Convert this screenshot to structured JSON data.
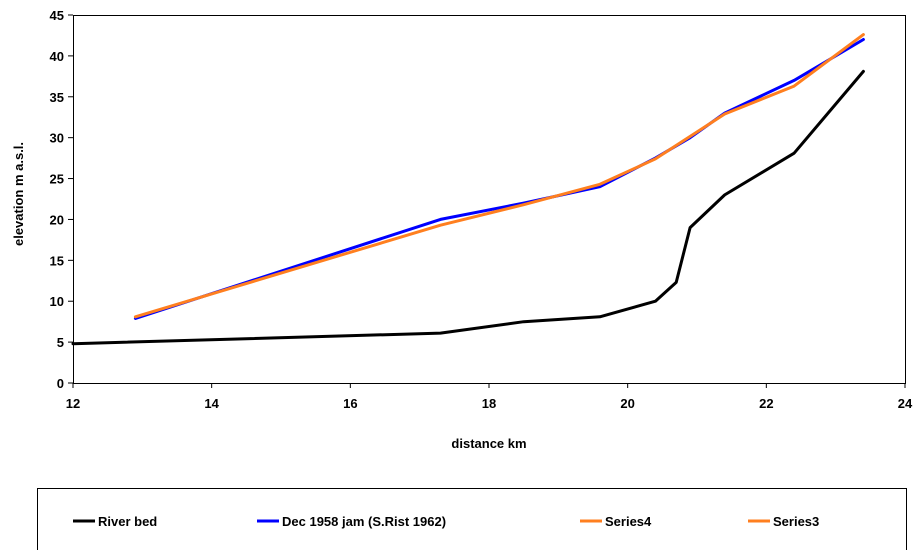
{
  "chart_data": {
    "type": "line",
    "title": "",
    "xlabel": "distance km",
    "ylabel": "elevation m a.s.l.",
    "xlim": [
      12,
      24
    ],
    "ylim": [
      0,
      45
    ],
    "xticks": [
      12,
      14,
      16,
      18,
      20,
      22,
      24
    ],
    "yticks": [
      0,
      5,
      10,
      15,
      20,
      25,
      30,
      35,
      40,
      45
    ],
    "grid": false,
    "legend_position": "bottom",
    "series": [
      {
        "name": "River bed",
        "color": "#000000",
        "points": [
          [
            12.0,
            4.8
          ],
          [
            17.3,
            6.1
          ],
          [
            18.5,
            7.5
          ],
          [
            19.6,
            8.1
          ],
          [
            20.4,
            10.0
          ],
          [
            20.7,
            12.3
          ],
          [
            20.9,
            19.0
          ],
          [
            21.4,
            23.0
          ],
          [
            22.4,
            28.1
          ],
          [
            23.4,
            38.1
          ]
        ]
      },
      {
        "name": "Dec 1958 jam (S.Rist 1962)",
        "color": "#0000ff",
        "points": [
          [
            12.9,
            7.9
          ],
          [
            17.3,
            20.0
          ],
          [
            18.5,
            22.0
          ],
          [
            19.6,
            24.0
          ],
          [
            20.4,
            27.5
          ],
          [
            20.9,
            30.0
          ],
          [
            21.4,
            33.0
          ],
          [
            22.4,
            37.0
          ],
          [
            23.4,
            42.0
          ]
        ]
      },
      {
        "name": "Series4",
        "color": "#ff7f1f",
        "points": [
          [
            12.9,
            8.1
          ],
          [
            17.3,
            19.3
          ],
          [
            18.5,
            21.8
          ],
          [
            19.6,
            24.3
          ],
          [
            20.4,
            27.4
          ],
          [
            21.4,
            32.9
          ],
          [
            22.4,
            36.3
          ],
          [
            23.4,
            42.6
          ]
        ]
      },
      {
        "name": "Series3",
        "color": "#ff7f1f",
        "points": []
      }
    ]
  }
}
